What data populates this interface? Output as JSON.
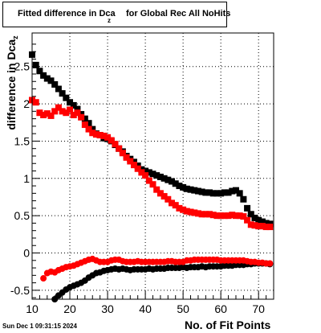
{
  "title": {
    "main": "Fitted difference in Dca",
    "subscript": "z",
    "rest": "for Global Rec All NoHits"
  },
  "footer": {
    "datestamp": "Sun Dec  1 09:31:15 2024"
  },
  "chart_data": {
    "type": "scatter",
    "xlabel": "No. of Fit Points",
    "ylabel": "difference in Dca",
    "ylabel_subscript": "z",
    "xlim": [
      10,
      74
    ],
    "ylim": [
      -0.62,
      2.95
    ],
    "grid": true,
    "x_ticks": [
      10,
      20,
      30,
      40,
      50,
      60,
      70
    ],
    "y_ticks": [
      -0.5,
      0,
      0.5,
      1,
      1.5,
      2,
      2.5
    ],
    "y_tick_labels": [
      "-0.5",
      "0",
      "0.5",
      "1",
      "1.5",
      "2",
      "2.5"
    ],
    "series": [
      {
        "color": "#000000",
        "marker": "square",
        "x": [
          10,
          11,
          12,
          13,
          14,
          15,
          16,
          17,
          18,
          19,
          20,
          21,
          22,
          23,
          24,
          25,
          26,
          27,
          28,
          29,
          30,
          31,
          32,
          33,
          34,
          35,
          36,
          37,
          38,
          39,
          40,
          41,
          42,
          43,
          44,
          45,
          46,
          47,
          48,
          49,
          50,
          51,
          52,
          53,
          54,
          55,
          56,
          57,
          58,
          59,
          60,
          61,
          62,
          63,
          64,
          65,
          66,
          67,
          68,
          69,
          70,
          71,
          72,
          73
        ],
        "y": [
          2.66,
          2.52,
          2.44,
          2.38,
          2.34,
          2.31,
          2.26,
          2.2,
          2.14,
          2.08,
          2.02,
          1.98,
          1.93,
          1.86,
          1.8,
          1.74,
          1.66,
          1.6,
          1.58,
          1.54,
          1.53,
          1.5,
          1.45,
          1.4,
          1.36,
          1.3,
          1.26,
          1.22,
          1.17,
          1.12,
          1.1,
          1.08,
          1.06,
          1.04,
          1.02,
          1.0,
          0.98,
          0.96,
          0.93,
          0.9,
          0.88,
          0.86,
          0.85,
          0.84,
          0.83,
          0.82,
          0.81,
          0.81,
          0.8,
          0.8,
          0.8,
          0.81,
          0.81,
          0.83,
          0.84,
          0.8,
          0.72,
          0.6,
          0.52,
          0.47,
          0.44,
          0.42,
          0.4,
          0.39
        ]
      },
      {
        "color": "#ff0000",
        "marker": "square",
        "x": [
          10,
          11,
          12,
          13,
          14,
          15,
          16,
          17,
          18,
          19,
          20,
          21,
          22,
          23,
          24,
          25,
          26,
          27,
          28,
          29,
          30,
          31,
          32,
          33,
          34,
          35,
          36,
          37,
          38,
          39,
          40,
          41,
          42,
          43,
          44,
          45,
          46,
          47,
          48,
          49,
          50,
          51,
          52,
          53,
          54,
          55,
          56,
          57,
          58,
          59,
          60,
          61,
          62,
          63,
          64,
          65,
          66,
          67,
          68,
          69,
          70,
          71,
          72,
          73
        ],
        "y": [
          2.05,
          2.02,
          1.88,
          1.85,
          1.87,
          1.84,
          1.9,
          1.95,
          1.9,
          1.88,
          1.92,
          1.85,
          1.88,
          1.82,
          1.72,
          1.66,
          1.61,
          1.59,
          1.58,
          1.57,
          1.55,
          1.51,
          1.46,
          1.4,
          1.34,
          1.28,
          1.23,
          1.18,
          1.13,
          1.08,
          1.04,
          0.97,
          0.92,
          0.85,
          0.8,
          0.76,
          0.72,
          0.67,
          0.64,
          0.6,
          0.58,
          0.56,
          0.55,
          0.54,
          0.53,
          0.52,
          0.52,
          0.52,
          0.51,
          0.5,
          0.5,
          0.5,
          0.5,
          0.51,
          0.5,
          0.5,
          0.49,
          0.44,
          0.38,
          0.37,
          0.36,
          0.36,
          0.35,
          0.35
        ]
      },
      {
        "color": "#000000",
        "marker": "circle",
        "x": [
          16,
          17,
          18,
          19,
          20,
          21,
          22,
          23,
          24,
          25,
          26,
          27,
          28,
          29,
          30,
          31,
          32,
          33,
          34,
          35,
          36,
          37,
          38,
          39,
          40,
          41,
          42,
          43,
          44,
          45,
          46,
          47,
          48,
          49,
          50,
          51,
          52,
          53,
          54,
          55,
          56,
          57,
          58,
          59,
          60,
          61,
          62,
          63,
          64,
          65,
          66,
          67,
          68,
          69,
          70,
          71,
          72,
          73
        ],
        "y": [
          -0.62,
          -0.57,
          -0.53,
          -0.49,
          -0.46,
          -0.44,
          -0.42,
          -0.4,
          -0.37,
          -0.33,
          -0.3,
          -0.27,
          -0.26,
          -0.24,
          -0.23,
          -0.22,
          -0.21,
          -0.22,
          -0.21,
          -0.22,
          -0.23,
          -0.22,
          -0.22,
          -0.22,
          -0.22,
          -0.21,
          -0.22,
          -0.21,
          -0.21,
          -0.21,
          -0.2,
          -0.2,
          -0.2,
          -0.2,
          -0.19,
          -0.2,
          -0.19,
          -0.19,
          -0.19,
          -0.18,
          -0.19,
          -0.18,
          -0.18,
          -0.18,
          -0.18,
          -0.17,
          -0.17,
          -0.17,
          -0.16,
          -0.16,
          -0.16,
          -0.15,
          -0.15,
          -0.14,
          -0.14,
          -0.14,
          -0.14,
          -0.15
        ]
      },
      {
        "color": "#ff0000",
        "marker": "circle",
        "x": [
          13,
          14,
          15,
          16,
          17,
          18,
          19,
          20,
          21,
          22,
          23,
          24,
          25,
          26,
          27,
          28,
          29,
          30,
          31,
          32,
          33,
          34,
          35,
          36,
          37,
          38,
          39,
          40,
          41,
          42,
          43,
          44,
          45,
          46,
          47,
          48,
          49,
          50,
          51,
          52,
          53,
          54,
          55,
          56,
          57,
          58,
          59,
          60,
          61,
          62,
          63,
          64,
          65,
          66,
          67,
          68,
          69,
          70,
          71,
          72,
          73
        ],
        "y": [
          -0.34,
          -0.27,
          -0.25,
          -0.26,
          -0.23,
          -0.21,
          -0.19,
          -0.18,
          -0.17,
          -0.15,
          -0.13,
          -0.11,
          -0.09,
          -0.08,
          -0.1,
          -0.12,
          -0.12,
          -0.12,
          -0.1,
          -0.09,
          -0.09,
          -0.11,
          -0.12,
          -0.12,
          -0.12,
          -0.11,
          -0.12,
          -0.12,
          -0.12,
          -0.12,
          -0.12,
          -0.12,
          -0.12,
          -0.11,
          -0.11,
          -0.12,
          -0.12,
          -0.12,
          -0.1,
          -0.1,
          -0.09,
          -0.09,
          -0.09,
          -0.09,
          -0.09,
          -0.09,
          -0.09,
          -0.1,
          -0.1,
          -0.1,
          -0.1,
          -0.1,
          -0.1,
          -0.1,
          -0.11,
          -0.12,
          -0.12,
          -0.13,
          -0.13,
          -0.14,
          -0.14
        ]
      }
    ]
  }
}
